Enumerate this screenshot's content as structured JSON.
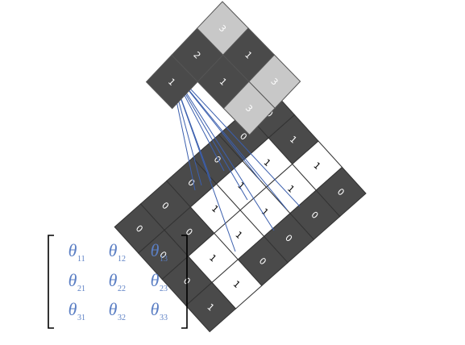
{
  "input_grid": {
    "rows": [
      [
        "0",
        "1",
        "1",
        "0"
      ],
      [
        "0",
        "1",
        "1",
        "0"
      ],
      [
        "0",
        "1",
        "1",
        "0"
      ],
      [
        "0",
        "1",
        "1",
        "0"
      ],
      [
        "0",
        "0",
        "1",
        "1"
      ],
      [
        "0",
        "0",
        "0",
        "1"
      ]
    ],
    "shade": [
      [
        "dark",
        "dark",
        "white",
        "dark"
      ],
      [
        "dark",
        "white",
        "white",
        "dark"
      ],
      [
        "dark",
        "white",
        "white",
        "dark"
      ],
      [
        "dark",
        "white",
        "white",
        "dark"
      ],
      [
        "dark",
        "dark",
        "white",
        "white"
      ],
      [
        "dark",
        "dark",
        "dark",
        "dark"
      ]
    ]
  },
  "output_grid": {
    "rows": [
      [
        "3",
        "1",
        "3"
      ],
      [
        "2",
        "1",
        "3"
      ],
      [
        "1",
        "",
        ""
      ]
    ],
    "shade": [
      [
        "light",
        "dark",
        "light"
      ],
      [
        "dark",
        "dark",
        "light"
      ],
      [
        "dark",
        "",
        ""
      ]
    ],
    "visible": [
      [
        true,
        true,
        true
      ],
      [
        true,
        true,
        true
      ],
      [
        true,
        false,
        false
      ]
    ]
  },
  "matrix": {
    "rows": [
      [
        {
          "sym": "θ",
          "sub": "11"
        },
        {
          "sym": "θ",
          "sub": "12"
        },
        {
          "sym": "θ",
          "sub": "13"
        }
      ],
      [
        {
          "sym": "θ",
          "sub": "21"
        },
        {
          "sym": "θ",
          "sub": "22"
        },
        {
          "sym": "θ",
          "sub": "23"
        }
      ],
      [
        {
          "sym": "θ",
          "sub": "31"
        },
        {
          "sym": "θ",
          "sub": "32"
        },
        {
          "sym": "θ",
          "sub": "33"
        }
      ]
    ]
  },
  "colors": {
    "dark": "#4a4a4a",
    "light": "#c8c8c8",
    "white": "#ffffff",
    "grid_line": "#333333",
    "connector": "#3b5fae",
    "theta": "#5b7fc4"
  }
}
